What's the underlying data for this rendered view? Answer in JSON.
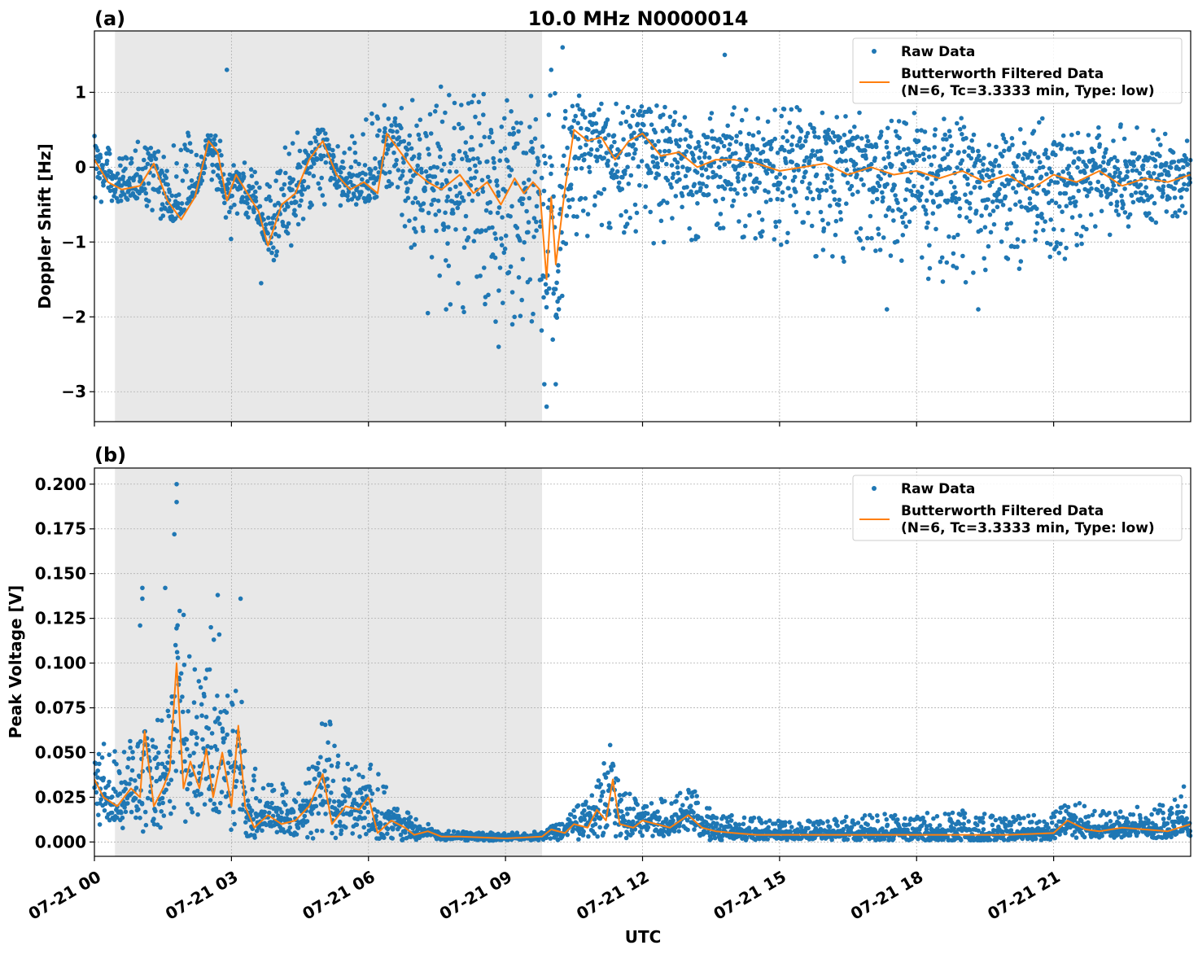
{
  "figure": {
    "title": "10.0 MHz N0000014",
    "xlabel": "UTC",
    "legend": {
      "raw_label": "Raw Data",
      "filtered_label_line1": "Butterworth Filtered Data",
      "filtered_label_line2": "(N=6, Tc=3.3333 min, Type: low)"
    },
    "colors": {
      "raw": "#1f77b4",
      "filtered": "#ff7f0e",
      "night_shading": "#e8e8e8",
      "grid": "#b0b0b0"
    }
  },
  "chart_data": [
    {
      "type": "scatter",
      "panel_label": "(a)",
      "ylabel": "Doppler Shift [Hz]",
      "x_unit": "hours UTC on 07-21",
      "xlim": [
        0,
        24
      ],
      "ylim": [
        -3.4,
        1.82
      ],
      "yticks": [
        1,
        0,
        -1,
        -2,
        -3
      ],
      "ytick_labels": [
        "1",
        "0",
        "−1",
        "−2",
        "−3"
      ],
      "xticks": [
        0,
        3,
        6,
        9,
        12,
        15,
        18,
        21
      ],
      "shaded_interval": [
        0.45,
        9.8
      ],
      "grid": true,
      "legend_position": "top-right",
      "series": [
        {
          "name": "Raw Data",
          "style": "dots",
          "envelope": {
            "x": [
              0,
              0.5,
              1,
              1.5,
              2,
              2.5,
              3,
              3.5,
              4,
              4.5,
              5,
              5.5,
              6,
              6.5,
              7,
              7.5,
              8,
              8.5,
              9,
              9.5,
              10,
              10.5,
              11,
              11.5,
              12,
              13,
              14,
              15,
              16,
              17,
              18,
              19,
              20,
              21,
              22,
              23,
              24
            ],
            "lower": [
              -0.45,
              -0.5,
              -0.4,
              -0.85,
              -0.55,
              -0.1,
              -1.0,
              -0.6,
              -1.4,
              -0.9,
              -0.5,
              -0.55,
              -0.45,
              -0.3,
              -1.3,
              -1.8,
              -1.9,
              -2.1,
              -2.3,
              -2.2,
              -2.6,
              -1.0,
              -0.9,
              -0.9,
              -1.1,
              -1.0,
              -1.1,
              -1.1,
              -1.3,
              -1.4,
              -1.5,
              -1.6,
              -1.4,
              -1.3,
              -1.0,
              -0.8,
              -0.6
            ],
            "upper": [
              0.5,
              0.1,
              0.4,
              0.2,
              0.5,
              0.55,
              0.2,
              0.0,
              0.15,
              0.5,
              0.5,
              0.3,
              0.75,
              0.9,
              1.05,
              1.15,
              1.3,
              1.2,
              1.1,
              1.05,
              1.2,
              1.1,
              0.9,
              0.85,
              0.85,
              0.8,
              0.8,
              0.8,
              0.8,
              0.75,
              0.75,
              0.7,
              0.7,
              0.65,
              0.6,
              0.55,
              0.5
            ]
          },
          "outliers": [
            [
              2.9,
              1.3
            ],
            [
              9.9,
              -3.2
            ],
            [
              10.25,
              1.6
            ],
            [
              10.0,
              1.3
            ],
            [
              13.8,
              1.5
            ],
            [
              8.85,
              -2.4
            ],
            [
              9.15,
              -2.1
            ],
            [
              9.85,
              -2.9
            ],
            [
              10.1,
              -2.9
            ],
            [
              17.35,
              -1.9
            ],
            [
              19.35,
              -1.9
            ],
            [
              3.65,
              -1.55
            ],
            [
              7.3,
              -1.95
            ],
            [
              7.7,
              -1.9
            ]
          ]
        },
        {
          "name": "Butterworth Filtered Data",
          "style": "line",
          "x": [
            0,
            0.3,
            0.6,
            1.0,
            1.3,
            1.6,
            1.9,
            2.2,
            2.5,
            2.7,
            2.9,
            3.1,
            3.3,
            3.6,
            3.8,
            4.1,
            4.4,
            4.7,
            5.0,
            5.3,
            5.6,
            5.9,
            6.2,
            6.4,
            6.7,
            7.0,
            7.3,
            7.6,
            8.0,
            8.3,
            8.6,
            8.9,
            9.2,
            9.4,
            9.6,
            9.75,
            9.9,
            10.0,
            10.1,
            10.3,
            10.5,
            10.8,
            11.1,
            11.4,
            11.7,
            12.0,
            12.4,
            12.8,
            13.2,
            13.6,
            14.0,
            14.5,
            15.0,
            15.5,
            16.0,
            16.5,
            17.0,
            17.5,
            18.0,
            18.5,
            19.0,
            19.5,
            20.0,
            20.5,
            21.0,
            21.5,
            22.0,
            22.5,
            23.0,
            23.5,
            24.0
          ],
          "y": [
            0.1,
            -0.2,
            -0.3,
            -0.25,
            0.05,
            -0.45,
            -0.7,
            -0.4,
            0.35,
            0.2,
            -0.45,
            -0.1,
            -0.3,
            -0.6,
            -1.05,
            -0.5,
            -0.35,
            0.1,
            0.35,
            -0.1,
            -0.3,
            -0.2,
            -0.35,
            0.45,
            0.2,
            -0.05,
            -0.2,
            -0.3,
            -0.1,
            -0.35,
            -0.2,
            -0.5,
            -0.15,
            -0.35,
            -0.2,
            -0.3,
            -1.5,
            -0.4,
            -1.3,
            -0.3,
            0.5,
            0.35,
            0.4,
            0.1,
            0.35,
            0.45,
            0.15,
            0.2,
            0.0,
            0.1,
            0.1,
            0.05,
            -0.05,
            0.0,
            0.05,
            -0.1,
            0.0,
            -0.1,
            -0.05,
            -0.15,
            -0.05,
            -0.2,
            -0.1,
            -0.3,
            -0.1,
            -0.2,
            -0.05,
            -0.25,
            -0.15,
            -0.2,
            -0.1
          ]
        }
      ]
    },
    {
      "type": "scatter",
      "panel_label": "(b)",
      "ylabel": "Peak Voltage [V]",
      "x_unit": "hours UTC on 07-21",
      "xlim": [
        0,
        24
      ],
      "ylim": [
        -0.008,
        0.209
      ],
      "yticks": [
        0.0,
        0.025,
        0.05,
        0.075,
        0.1,
        0.125,
        0.15,
        0.175,
        0.2
      ],
      "ytick_labels": [
        "0.000",
        "0.025",
        "0.050",
        "0.075",
        "0.100",
        "0.125",
        "0.150",
        "0.175",
        "0.200"
      ],
      "xticks": [
        0,
        3,
        6,
        9,
        12,
        15,
        18,
        21
      ],
      "xtick_labels": [
        "07-21 00",
        "07-21 03",
        "07-21 06",
        "07-21 09",
        "07-21 12",
        "07-21 15",
        "07-21 18",
        "07-21 21"
      ],
      "shaded_interval": [
        0.45,
        9.8
      ],
      "grid": true,
      "legend_position": "top-right",
      "series": [
        {
          "name": "Raw Data",
          "style": "dots",
          "envelope": {
            "x": [
              0,
              0.5,
              1,
              1.3,
              1.6,
              1.85,
              2.1,
              2.4,
              2.7,
              3.0,
              3.2,
              3.6,
              4.0,
              4.4,
              4.8,
              5.0,
              5.4,
              5.8,
              6.2,
              6.6,
              7.0,
              7.5,
              8.0,
              9.0,
              9.8,
              10.2,
              10.6,
              11.0,
              11.3,
              11.6,
              12.0,
              12.5,
              13.0,
              13.5,
              14.0,
              15.0,
              16.0,
              17.0,
              18.0,
              19.0,
              20.0,
              21.0,
              21.3,
              22.0,
              23.0,
              24.0
            ],
            "lower": [
              0.008,
              0.005,
              0.005,
              0.006,
              0.01,
              0.012,
              0.008,
              0.01,
              0.008,
              0.006,
              0.004,
              0.002,
              0.003,
              0.002,
              0.002,
              0.003,
              0.002,
              0.002,
              0.002,
              0.001,
              0.001,
              0.001,
              0.0005,
              0.0005,
              0.0005,
              0.001,
              0.001,
              0.002,
              0.002,
              0.002,
              0.002,
              0.002,
              0.002,
              0.001,
              0.001,
              0.001,
              0.001,
              0.001,
              0.001,
              0.001,
              0.001,
              0.001,
              0.002,
              0.002,
              0.002,
              0.003
            ],
            "upper": [
              0.057,
              0.052,
              0.06,
              0.065,
              0.09,
              0.148,
              0.1,
              0.09,
              0.125,
              0.1,
              0.095,
              0.03,
              0.035,
              0.032,
              0.045,
              0.08,
              0.05,
              0.05,
              0.04,
              0.02,
              0.015,
              0.008,
              0.006,
              0.005,
              0.006,
              0.012,
              0.022,
              0.035,
              0.055,
              0.03,
              0.022,
              0.025,
              0.033,
              0.018,
              0.015,
              0.012,
              0.013,
              0.016,
              0.016,
              0.018,
              0.014,
              0.016,
              0.025,
              0.018,
              0.02,
              0.028
            ]
          },
          "outliers": [
            [
              1.8,
              0.2
            ],
            [
              1.8,
              0.19
            ],
            [
              1.75,
              0.172
            ],
            [
              1.05,
              0.142
            ],
            [
              1.05,
              0.136
            ],
            [
              1.55,
              0.142
            ],
            [
              2.7,
              0.138
            ],
            [
              3.2,
              0.136
            ],
            [
              1.0,
              0.121
            ],
            [
              2.55,
              0.12
            ],
            [
              23.85,
              0.031
            ]
          ]
        },
        {
          "name": "Butterworth Filtered Data",
          "style": "line",
          "x": [
            0,
            0.2,
            0.5,
            0.8,
            1.0,
            1.1,
            1.3,
            1.5,
            1.65,
            1.8,
            1.95,
            2.1,
            2.3,
            2.45,
            2.6,
            2.8,
            3.0,
            3.15,
            3.3,
            3.5,
            3.8,
            4.1,
            4.4,
            4.7,
            5.0,
            5.2,
            5.5,
            5.8,
            6.0,
            6.2,
            6.5,
            6.8,
            7.0,
            7.3,
            7.6,
            8.0,
            9.0,
            9.8,
            10.0,
            10.3,
            10.5,
            10.8,
            11.0,
            11.2,
            11.35,
            11.5,
            11.8,
            12.0,
            12.3,
            12.6,
            13.0,
            13.3,
            13.6,
            14.0,
            14.5,
            15.0,
            16.0,
            17.0,
            18.0,
            19.0,
            20.0,
            21.0,
            21.3,
            21.7,
            22.0,
            22.5,
            23.0,
            23.5,
            24.0
          ],
          "y": [
            0.035,
            0.025,
            0.02,
            0.03,
            0.025,
            0.062,
            0.02,
            0.03,
            0.04,
            0.1,
            0.03,
            0.045,
            0.03,
            0.052,
            0.025,
            0.05,
            0.02,
            0.065,
            0.02,
            0.008,
            0.015,
            0.01,
            0.012,
            0.02,
            0.038,
            0.01,
            0.02,
            0.018,
            0.025,
            0.005,
            0.012,
            0.008,
            0.004,
            0.006,
            0.003,
            0.003,
            0.002,
            0.003,
            0.007,
            0.005,
            0.01,
            0.008,
            0.018,
            0.012,
            0.035,
            0.01,
            0.008,
            0.012,
            0.01,
            0.008,
            0.015,
            0.008,
            0.006,
            0.005,
            0.004,
            0.004,
            0.004,
            0.004,
            0.004,
            0.004,
            0.004,
            0.005,
            0.012,
            0.007,
            0.006,
            0.008,
            0.007,
            0.006,
            0.01
          ]
        }
      ]
    }
  ]
}
